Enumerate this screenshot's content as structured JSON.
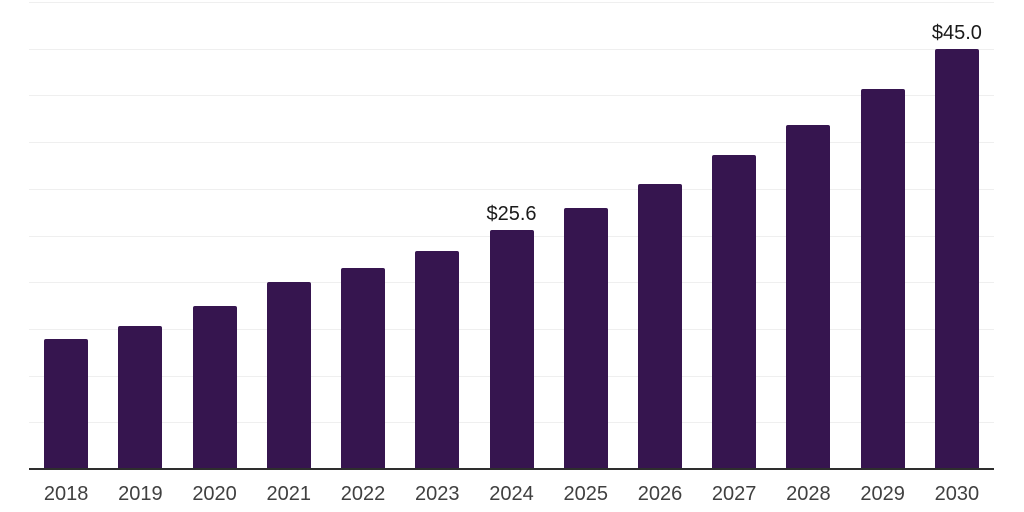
{
  "chart_data": {
    "type": "bar",
    "title": "",
    "x": [
      "2018",
      "2019",
      "2020",
      "2021",
      "2022",
      "2023",
      "2024",
      "2025",
      "2026",
      "2027",
      "2028",
      "2029",
      "2030"
    ],
    "values": [
      13.9,
      15.3,
      17.5,
      20.0,
      21.5,
      23.3,
      25.6,
      27.9,
      30.5,
      33.6,
      36.8,
      40.7,
      45.0
    ],
    "data_labels": [
      {
        "x": "2024",
        "text": "$25.6"
      },
      {
        "x": "2030",
        "text": "$45.0"
      }
    ],
    "xlabel": "",
    "ylabel": "",
    "ylim": [
      0,
      50
    ],
    "grid_step": 5,
    "grid": "horizontal",
    "legend": "none",
    "colors": {
      "bar": "#36154f",
      "grid": "#efefef",
      "axis": "#2e2e2e",
      "tick_label": "#404040",
      "data_label": "#1a1a1a",
      "background": "#ffffff"
    }
  }
}
